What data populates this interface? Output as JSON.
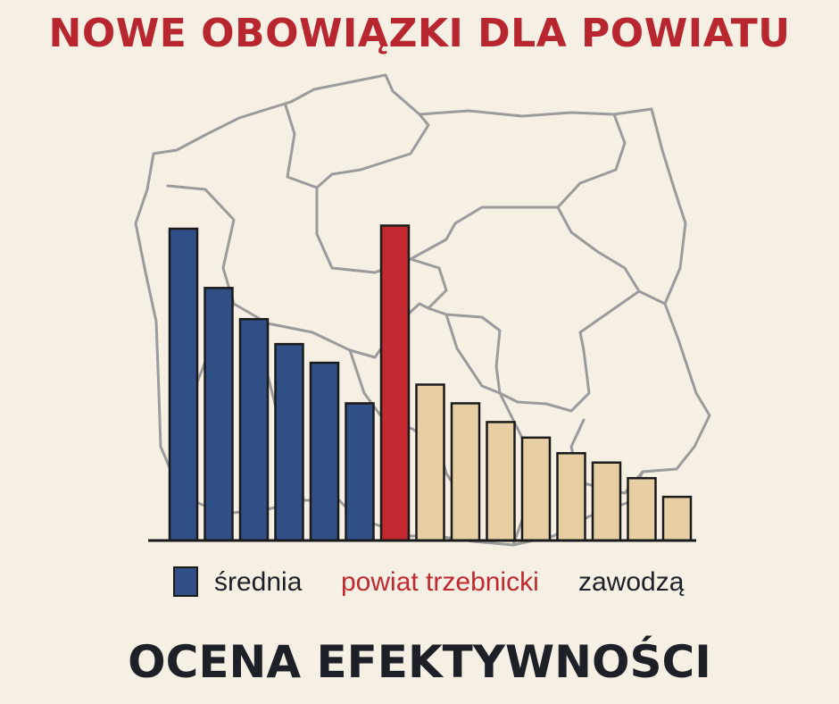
{
  "title": "NOWE OBOWIĄZKI DLA POWIATU",
  "subtitle": "OCENA EFEKTYWNOŚCI",
  "colors": {
    "title": "#b8262f",
    "srednia": "#2f4f86",
    "highlight": "#c1282f",
    "zawodza": "#e7cfa3",
    "outline": "#1b1b1b",
    "map": "#9b9b9b",
    "background": "#f6efe4"
  },
  "chart_data": {
    "type": "bar",
    "title": "NOWE OBOWIĄZKI DLA POWIATU",
    "xlabel": "",
    "ylabel": "",
    "ylim": [
      0,
      100
    ],
    "grid": false,
    "legend_position": "bottom",
    "series": [
      {
        "name": "średnia",
        "values": [
          100,
          81,
          71,
          63,
          57,
          44
        ]
      },
      {
        "name": "powiat trzebnicki",
        "values": [
          101
        ]
      },
      {
        "name": "zawodzą",
        "values": [
          50,
          44,
          38,
          33,
          28,
          25,
          20,
          14
        ]
      }
    ]
  }
}
